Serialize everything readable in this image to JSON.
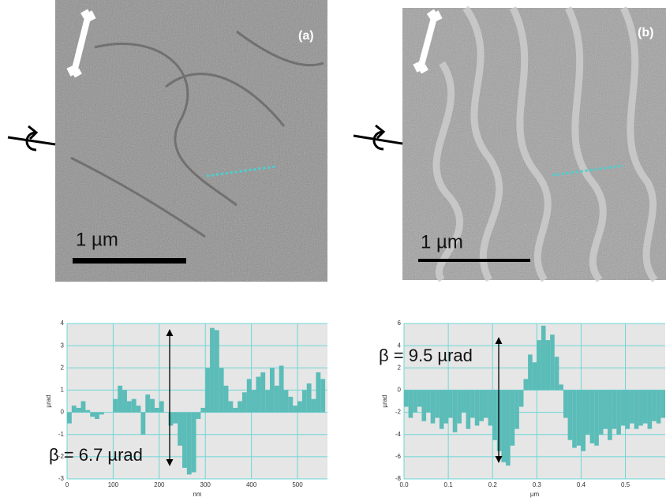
{
  "images": [
    {
      "label": "(a)",
      "scale_bar": "1 µm"
    },
    {
      "label": "(b)",
      "scale_bar": "1 µm"
    }
  ],
  "chart_data": [
    {
      "type": "histogram",
      "xlabel": "nm",
      "ylabel": "µrad",
      "annotation": "β = 6.7 µrad",
      "color": "#5bbcb8",
      "grid": true,
      "xlim": [
        0,
        565
      ],
      "ylim": [
        -3,
        4
      ],
      "xticks": [
        0,
        100,
        200,
        300,
        400,
        500
      ],
      "yticks": [
        -3,
        -2,
        -1,
        0,
        1,
        2,
        3,
        4
      ],
      "bins": [
        0,
        10,
        20,
        30,
        40,
        50,
        60,
        70,
        80,
        90,
        100,
        110,
        120,
        130,
        140,
        150,
        160,
        170,
        180,
        190,
        200,
        210,
        220,
        230,
        240,
        250,
        260,
        270,
        280,
        290,
        300,
        310,
        320,
        330,
        340,
        350,
        360,
        370,
        380,
        390,
        400,
        410,
        420,
        430,
        440,
        450,
        460,
        470,
        480,
        490,
        500,
        510,
        520,
        530,
        540,
        550,
        560
      ],
      "values": [
        -0.5,
        0.3,
        0.2,
        0.5,
        0.1,
        -0.2,
        -0.3,
        -0.1,
        0,
        0,
        0.6,
        1.2,
        1.0,
        0.5,
        0.6,
        0.3,
        -1.0,
        0.8,
        0.6,
        0.2,
        0.5,
        0,
        -0.6,
        -0.5,
        -1.5,
        -2.5,
        -2.8,
        -2.7,
        -0.3,
        0.2,
        2.0,
        3.8,
        3.7,
        2.0,
        1.2,
        0.5,
        0.2,
        0.5,
        0.9,
        1.5,
        1.0,
        1.6,
        1.8,
        1.0,
        2.0,
        1.2,
        2.1,
        1.0,
        0.7,
        0.3,
        0.5,
        1.0,
        1.3,
        0.6,
        1.8,
        1.5
      ]
    },
    {
      "type": "histogram",
      "xlabel": "µm",
      "ylabel": "µrad",
      "annotation": "β = 9.5 µrad",
      "color": "#5bbcb8",
      "grid": true,
      "xlim": [
        0,
        0.59
      ],
      "ylim": [
        -8,
        6
      ],
      "xticks": [
        {
          "value": 0,
          "label": "0.0"
        },
        0.1,
        0.2,
        0.3,
        0.4,
        0.5
      ],
      "yticks": [
        -8,
        -6,
        -4,
        -2,
        0,
        2,
        4,
        6
      ],
      "bins": [
        0,
        0.01,
        0.02,
        0.03,
        0.04,
        0.05,
        0.06,
        0.07,
        0.08,
        0.09,
        0.1,
        0.11,
        0.12,
        0.13,
        0.14,
        0.15,
        0.16,
        0.17,
        0.18,
        0.19,
        0.2,
        0.21,
        0.22,
        0.23,
        0.24,
        0.25,
        0.26,
        0.27,
        0.28,
        0.29,
        0.3,
        0.31,
        0.32,
        0.33,
        0.34,
        0.35,
        0.36,
        0.37,
        0.38,
        0.39,
        0.4,
        0.41,
        0.42,
        0.43,
        0.44,
        0.45,
        0.46,
        0.47,
        0.48,
        0.49,
        0.5,
        0.51,
        0.52,
        0.53,
        0.54,
        0.55,
        0.56,
        0.57,
        0.58,
        0.59
      ],
      "values": [
        -1.5,
        -2.5,
        -2,
        -1.5,
        -2.8,
        -2.0,
        -3.0,
        -2.5,
        -3.5,
        -3.0,
        -2.5,
        -3.8,
        -3.0,
        -2.0,
        -3.5,
        -2.5,
        -3.2,
        -2.8,
        -2.5,
        -3.2,
        -4.5,
        -5.5,
        -6.5,
        -6.8,
        -5.0,
        -3.5,
        -1.5,
        1.0,
        3.2,
        2.5,
        4.5,
        5.8,
        4.5,
        5.0,
        3.0,
        0.5,
        -2.5,
        -4.5,
        -5.2,
        -5.0,
        -5.5,
        -4.0,
        -4.8,
        -5.0,
        -4.0,
        -3.5,
        -4.5,
        -3.5,
        -4.0,
        -3.2,
        -3.5,
        -3.0,
        -3.5,
        -3.2,
        -3.0,
        -3.5,
        -2.8,
        -3.0,
        -2.5
      ]
    }
  ]
}
